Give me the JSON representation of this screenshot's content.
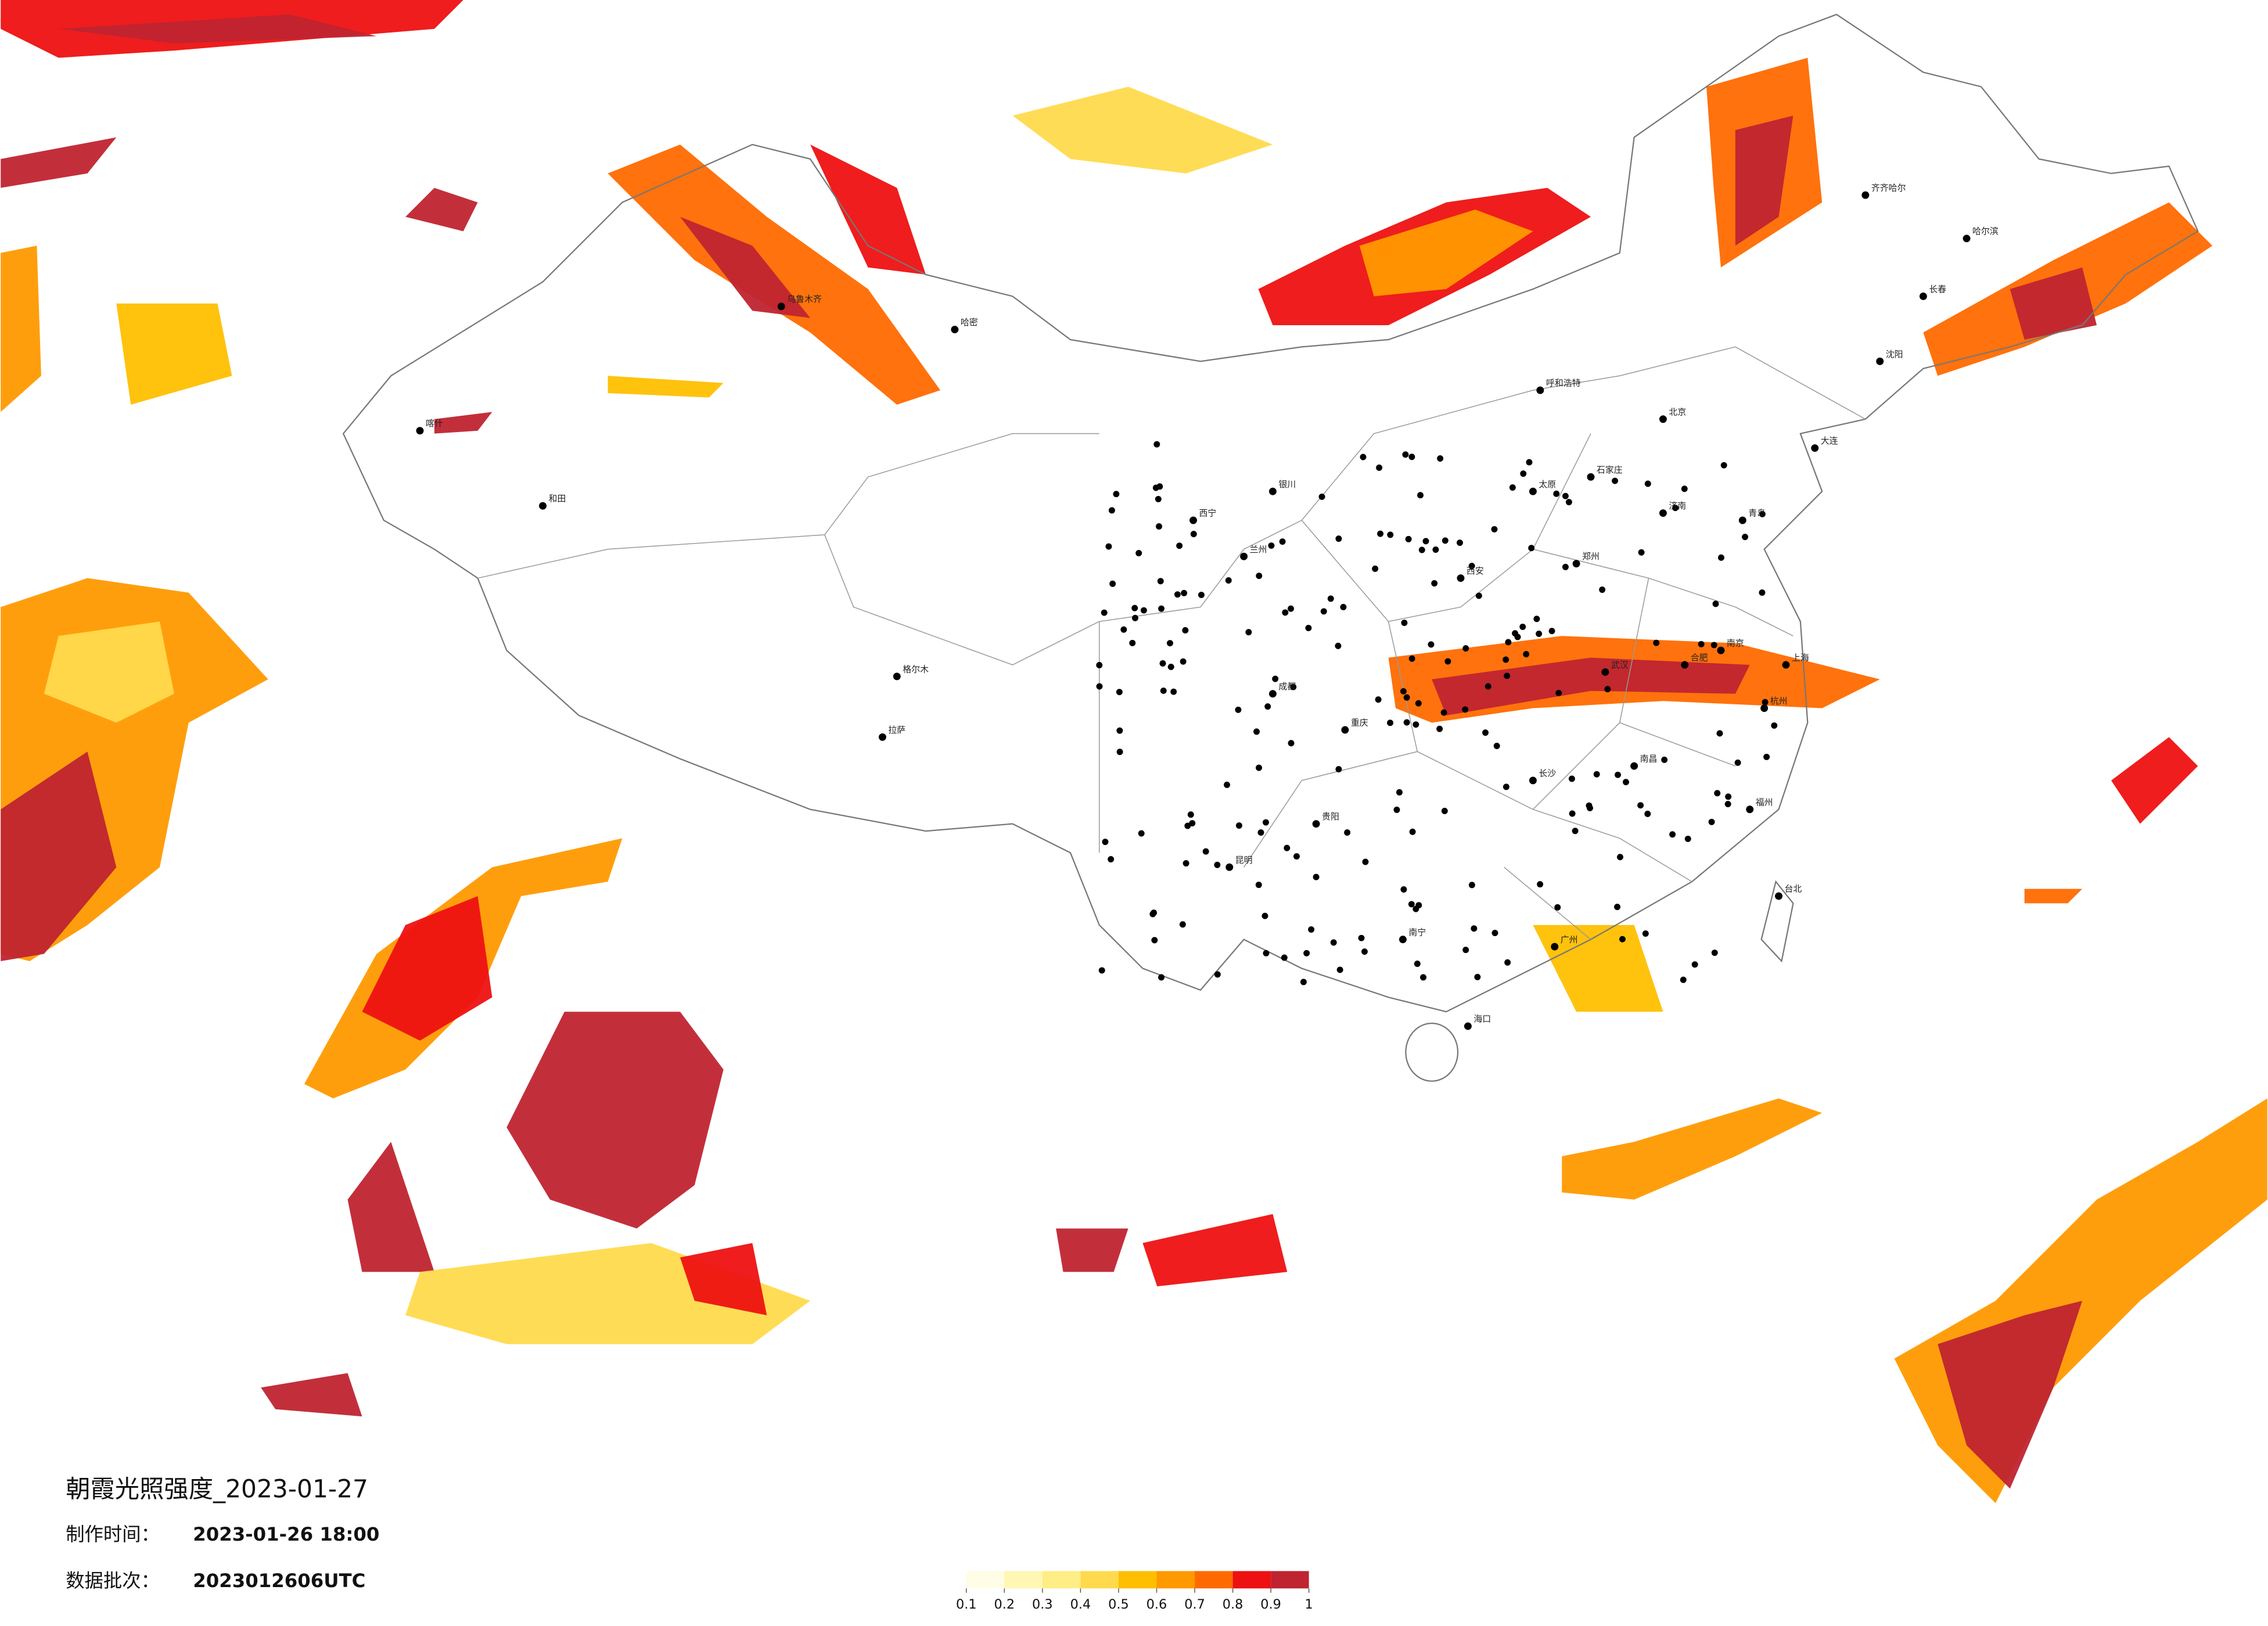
{
  "title": "朝霞光照强度_2023-01-27",
  "made_label": "制作时间：",
  "made_time": "2023-01-26 18:00",
  "batch_label": "数据批次：",
  "batch": "2023012606UTC",
  "colorbar": {
    "bounds": [
      0.1,
      0.2,
      0.3,
      0.4,
      0.5,
      0.6,
      0.7,
      0.8,
      0.9,
      1
    ],
    "colors": [
      "#fffde6",
      "#fff7b3",
      "#ffed85",
      "#ffda4d",
      "#ffbf00",
      "#ff9900",
      "#ff6a00",
      "#ee1111",
      "#bf2430"
    ]
  },
  "cities": [
    "北京",
    "上海",
    "广州",
    "武汉",
    "成都",
    "重庆",
    "西安",
    "哈尔滨",
    "长春",
    "沈阳",
    "乌鲁木齐",
    "拉萨",
    "昆明",
    "南宁",
    "海口",
    "兰州",
    "银川",
    "呼和浩特",
    "郑州",
    "济南",
    "南京",
    "杭州",
    "福州",
    "长沙",
    "贵阳",
    "西宁",
    "太原",
    "石家庄",
    "南昌",
    "合肥",
    "台北",
    "喀什",
    "和田",
    "哈密",
    "格尔木",
    "齐齐哈尔",
    "大连",
    "青岛"
  ]
}
